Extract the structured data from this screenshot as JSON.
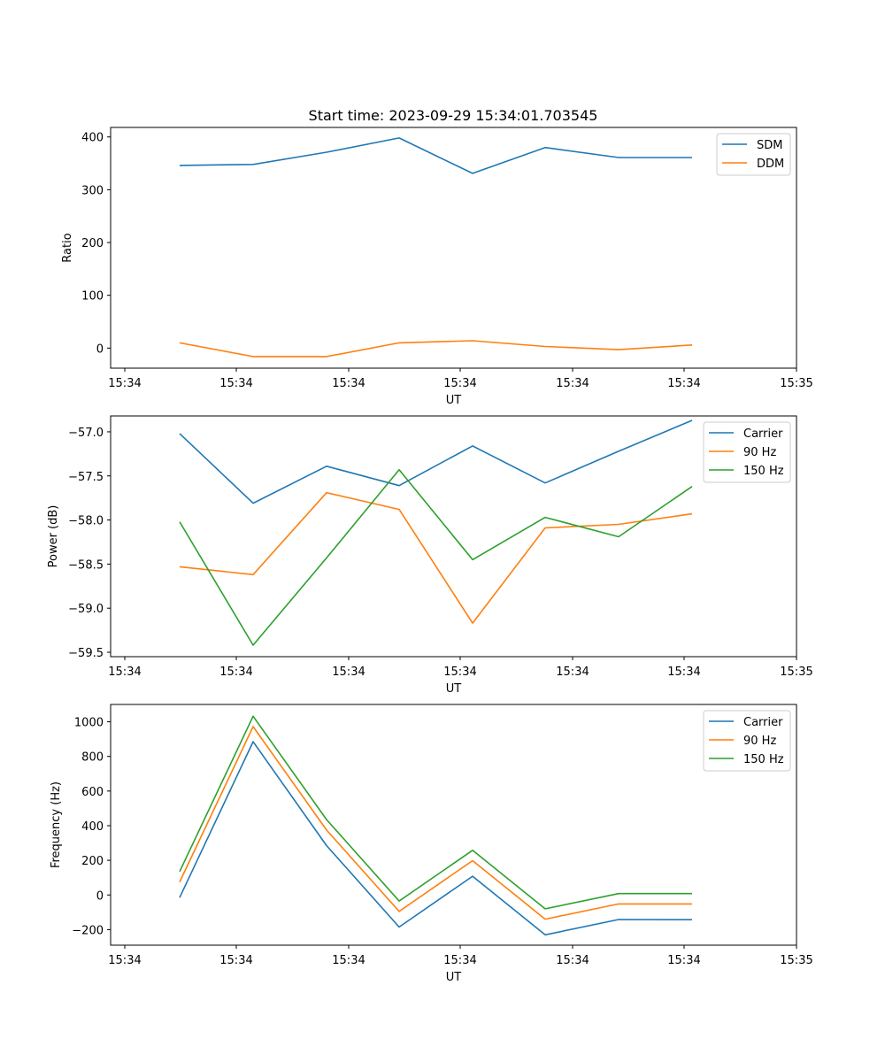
{
  "title": "Start time: 2023-09-29 15:34:01.703545",
  "chart_data": [
    {
      "type": "line",
      "xlabel": "UT",
      "ylabel": "Ratio",
      "x_tick_labels": [
        "15:34",
        "15:34",
        "15:34",
        "15:34",
        "15:34",
        "15:34",
        "15:34",
        "15:35"
      ],
      "y_ticks": [
        0,
        100,
        200,
        300,
        400
      ],
      "ylim": [
        -38,
        418
      ],
      "legend_position": "top-right",
      "series": [
        {
          "name": "SDM",
          "color": "#1f77b4",
          "values": [
            346,
            348,
            371,
            398,
            331,
            380,
            361,
            361
          ]
        },
        {
          "name": "DDM",
          "color": "#ff7f0e",
          "values": [
            10,
            -16,
            -16,
            10,
            14,
            3,
            -3,
            6
          ]
        }
      ]
    },
    {
      "type": "line",
      "xlabel": "UT",
      "ylabel": "Power (dB)",
      "x_tick_labels": [
        "15:34",
        "15:34",
        "15:34",
        "15:34",
        "15:34",
        "15:34",
        "15:34",
        "15:35"
      ],
      "y_ticks": [
        -57.0,
        -57.5,
        -58.0,
        -58.5,
        -59.0,
        -59.5
      ],
      "y_tick_labels": [
        "−57.0",
        "−57.5",
        "−58.0",
        "−58.5",
        "−59.0",
        "−59.5"
      ],
      "ylim": [
        -59.55,
        -56.82
      ],
      "legend_position": "top-right",
      "series": [
        {
          "name": "Carrier",
          "color": "#1f77b4",
          "values": [
            -57.02,
            -57.81,
            -57.39,
            -57.61,
            -57.16,
            -57.58,
            -57.22,
            -56.87
          ]
        },
        {
          "name": "90 Hz",
          "color": "#ff7f0e",
          "values": [
            -58.53,
            -58.62,
            -57.69,
            -57.88,
            -59.17,
            -58.09,
            -58.05,
            -57.93
          ]
        },
        {
          "name": "150 Hz",
          "color": "#2ca02c",
          "values": [
            -58.02,
            -59.42,
            -58.43,
            -57.43,
            -58.45,
            -57.97,
            -58.19,
            -57.62
          ]
        }
      ]
    },
    {
      "type": "line",
      "xlabel": "UT",
      "ylabel": "Frequency (Hz)",
      "x_tick_labels": [
        "15:34",
        "15:34",
        "15:34",
        "15:34",
        "15:34",
        "15:34",
        "15:34",
        "15:35"
      ],
      "y_ticks": [
        -200,
        0,
        200,
        400,
        600,
        800,
        1000
      ],
      "y_tick_labels": [
        "−200",
        "0",
        "200",
        "400",
        "600",
        "800",
        "1000"
      ],
      "ylim": [
        -290,
        1100
      ],
      "legend_position": "top-right",
      "series": [
        {
          "name": "Carrier",
          "color": "#1f77b4",
          "values": [
            -15,
            885,
            285,
            -185,
            108,
            -230,
            -142,
            -143
          ]
        },
        {
          "name": "90 Hz",
          "color": "#ff7f0e",
          "values": [
            75,
            972,
            375,
            -95,
            198,
            -140,
            -52,
            -52
          ]
        },
        {
          "name": "150 Hz",
          "color": "#2ca02c",
          "values": [
            135,
            1032,
            435,
            -35,
            258,
            -80,
            8,
            8
          ]
        }
      ]
    }
  ]
}
